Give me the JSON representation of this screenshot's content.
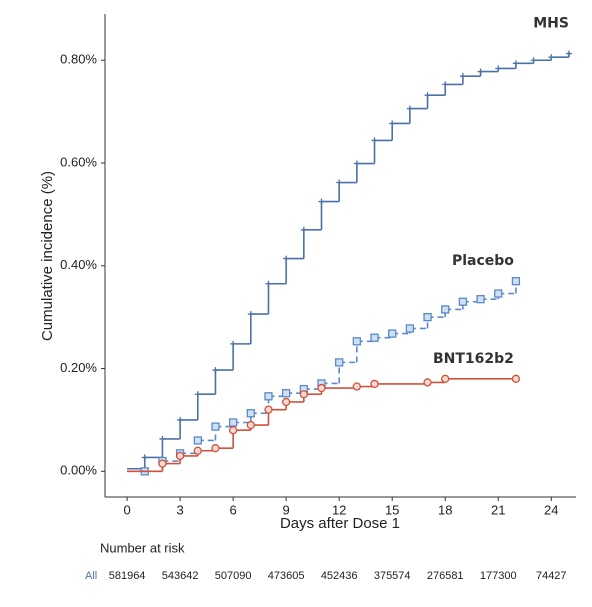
{
  "chart_data": {
    "type": "step",
    "y_label": "Cumulative incidence (%)",
    "x_label": "Days after Dose 1",
    "xlim": [
      -1.25,
      25.4
    ],
    "xticks": [
      0,
      3,
      6,
      9,
      12,
      15,
      18,
      21,
      24
    ],
    "ylim": [
      -0.05,
      0.89
    ],
    "yticks": [
      {
        "value": 0,
        "label": "0.00%"
      },
      {
        "value": 0.2,
        "label": "0.20%"
      },
      {
        "value": 0.4,
        "label": "0.40%"
      },
      {
        "value": 0.6,
        "label": "0.60%"
      },
      {
        "value": 0.8,
        "label": "0.80%"
      }
    ],
    "series": [
      {
        "name": "MHS",
        "color": "#4a72a8",
        "marker": "plus",
        "x": [
          0,
          1,
          2,
          3,
          4,
          5,
          6,
          7,
          8,
          9,
          10,
          11,
          12,
          13,
          14,
          15,
          16,
          17,
          18,
          19,
          20,
          21,
          22,
          23,
          24,
          25
        ],
        "values": [
          0.005,
          0.027,
          0.063,
          0.1,
          0.15,
          0.197,
          0.248,
          0.306,
          0.365,
          0.414,
          0.47,
          0.525,
          0.562,
          0.599,
          0.644,
          0.677,
          0.706,
          0.732,
          0.753,
          0.769,
          0.778,
          0.784,
          0.794,
          0.8,
          0.806,
          0.813
        ]
      },
      {
        "name": "Placebo",
        "color": "#5b8ac6",
        "marker": "square",
        "dashed": true,
        "x": [
          0,
          1,
          2,
          3,
          4,
          5,
          6,
          7,
          8,
          9,
          10,
          11,
          12,
          13,
          14,
          15,
          16,
          17,
          18,
          19,
          20,
          21,
          22
        ],
        "values": [
          0,
          0,
          0.02,
          0.035,
          0.06,
          0.087,
          0.095,
          0.113,
          0.146,
          0.152,
          0.16,
          0.171,
          0.212,
          0.253,
          0.26,
          0.268,
          0.278,
          0.3,
          0.315,
          0.33,
          0.335,
          0.346,
          0.37
        ]
      },
      {
        "name": "BNT162b2",
        "color": "#d0523a",
        "marker": "circle",
        "x": [
          0,
          2,
          3,
          4,
          5,
          6,
          7,
          8,
          9,
          10,
          11,
          13,
          14,
          17,
          18,
          22
        ],
        "values": [
          0,
          0.015,
          0.03,
          0.04,
          0.045,
          0.08,
          0.09,
          0.12,
          0.135,
          0.15,
          0.162,
          0.165,
          0.17,
          0.173,
          0.18,
          0.18
        ]
      }
    ]
  },
  "risk_table": {
    "title": "Number at risk",
    "group": "All",
    "values": [
      581964,
      543642,
      507090,
      473605,
      452436,
      375574,
      276581,
      177300,
      74427
    ]
  }
}
